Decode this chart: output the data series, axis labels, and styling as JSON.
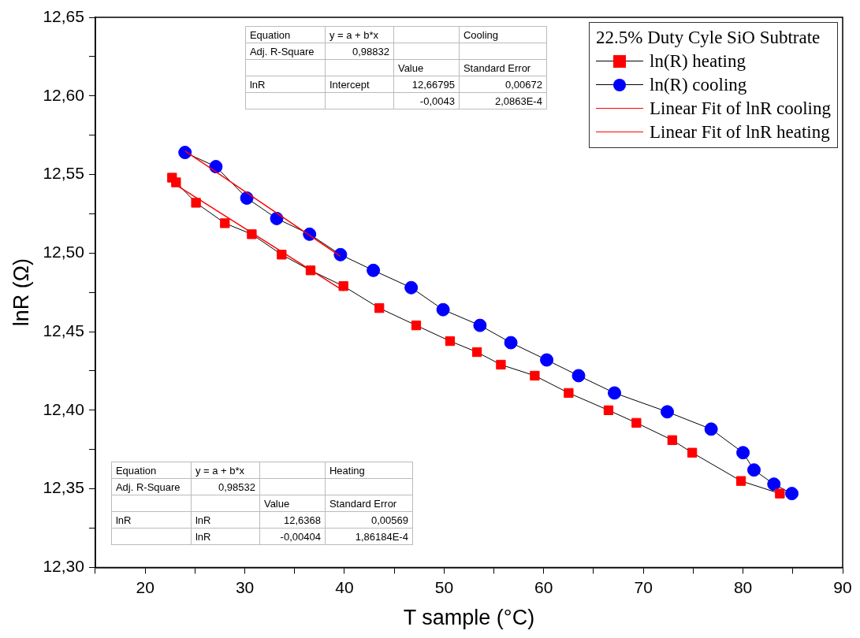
{
  "chart_data": {
    "type": "line",
    "xlabel": "T sample (°C)",
    "ylabel": "lnR (Ω)",
    "legend_title": "22.5% Duty Cyle SiO Subtrate",
    "xlim": [
      15,
      90
    ],
    "xticks": [
      {
        "value": 15,
        "label": null
      },
      20,
      {
        "value": 25,
        "label": null
      },
      30,
      {
        "value": 35,
        "label": null
      },
      40,
      {
        "value": 45,
        "label": null
      },
      50,
      {
        "value": 55,
        "label": null
      },
      60,
      {
        "value": 65,
        "label": null
      },
      70,
      {
        "value": 75,
        "label": null
      },
      80,
      {
        "value": 85,
        "label": null
      },
      90
    ],
    "ylim": [
      12.3,
      12.65
    ],
    "yticks": [
      {
        "value": 12.3,
        "label": "12,30"
      },
      {
        "value": 12.325,
        "label": null
      },
      {
        "value": 12.35,
        "label": "12,35"
      },
      {
        "value": 12.375,
        "label": null
      },
      {
        "value": 12.4,
        "label": "12,40"
      },
      {
        "value": 12.425,
        "label": null
      },
      {
        "value": 12.45,
        "label": "12,45"
      },
      {
        "value": 12.475,
        "label": null
      },
      {
        "value": 12.5,
        "label": "12,50"
      },
      {
        "value": 12.525,
        "label": null
      },
      {
        "value": 12.55,
        "label": "12,55"
      },
      {
        "value": 12.575,
        "label": null
      },
      {
        "value": 12.6,
        "label": "12,60"
      },
      {
        "value": 12.625,
        "label": null
      },
      {
        "value": 12.65,
        "label": "12,65"
      }
    ],
    "grid": false,
    "legend": "top right",
    "series": [
      {
        "name": "ln(R) heating",
        "color": "#ff0000",
        "marker": "square",
        "x": [
          22.7,
          23.1,
          25.1,
          28.0,
          30.7,
          33.7,
          36.6,
          39.9,
          43.5,
          47.2,
          50.6,
          53.3,
          55.7,
          59.1,
          62.5,
          66.5,
          69.3,
          72.9,
          74.9,
          79.8,
          83.7
        ],
        "values": [
          12.548,
          12.545,
          12.532,
          12.519,
          12.512,
          12.499,
          12.489,
          12.479,
          12.465,
          12.454,
          12.444,
          12.437,
          12.429,
          12.422,
          12.411,
          12.4,
          12.392,
          12.381,
          12.373,
          12.355,
          12.347
        ]
      },
      {
        "name": "ln(R) cooling",
        "color": "#0000ff",
        "marker": "circle",
        "x": [
          24.0,
          27.1,
          30.2,
          33.2,
          36.5,
          39.6,
          42.9,
          46.7,
          49.9,
          53.6,
          56.7,
          60.3,
          63.5,
          67.1,
          72.4,
          76.8,
          80.0,
          81.1,
          83.1,
          84.9
        ],
        "values": [
          12.564,
          12.555,
          12.535,
          12.522,
          12.512,
          12.499,
          12.489,
          12.478,
          12.464,
          12.454,
          12.443,
          12.432,
          12.422,
          12.411,
          12.399,
          12.388,
          12.373,
          12.362,
          12.353,
          12.347
        ]
      },
      {
        "name": "Linear Fit of lnR cooling",
        "color": "#ff0000",
        "marker": "none",
        "x": [
          24.0,
          39.6
        ],
        "values": [
          12.565,
          12.498
        ]
      },
      {
        "name": "Linear Fit of lnR heating",
        "color": "#ff0000",
        "marker": "none",
        "x": [
          22.7,
          39.9
        ],
        "values": [
          12.545,
          12.476
        ]
      }
    ],
    "annotations": [
      "Equation",
      "y = a + b*x",
      "Cooling",
      "Adj. R-Square",
      "0,98832",
      "Value",
      "Standard Error",
      "lnR",
      "Intercept",
      "12,66795",
      "0,00672",
      "-0,0043",
      "2,0863E-4",
      "Equation",
      "y = a + b*x",
      "Heating",
      "Adj. R-Square",
      "0,98532",
      "Value",
      "Standard Error",
      "lnR",
      "lnR",
      "12,6368",
      "0,00569",
      "lnR",
      "-0,00404",
      "1,86184E-4"
    ]
  }
}
